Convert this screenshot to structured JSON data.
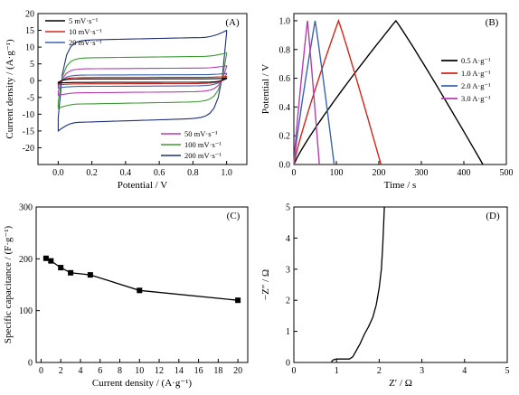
{
  "chart_data": [
    {
      "id": "A",
      "type": "line",
      "panel_label": "(A)",
      "xlabel": "Potential / V",
      "ylabel": "Current density / (A·g⁻¹)",
      "xlim": [
        -0.12,
        1.12
      ],
      "ylim": [
        -25,
        20
      ],
      "xticks": [
        "0.0",
        "0.2",
        "0.4",
        "0.6",
        "0.8",
        "1.0"
      ],
      "yticks": [
        "20",
        "15",
        "10",
        "5",
        "0",
        "-5",
        "-10",
        "-15",
        "-20"
      ],
      "xticks_v": [
        0,
        0.2,
        0.4,
        0.6,
        0.8,
        1.0
      ],
      "yticks_v": [
        20,
        15,
        10,
        5,
        0,
        -5,
        -10,
        -15,
        -20
      ],
      "legend_top": [
        "5 mV·s⁻¹",
        "10 mV·s⁻¹",
        "20 mV·s⁻¹"
      ],
      "legend_bottom": [
        "50 mV·s⁻¹",
        "100 mV·s⁻¹",
        "200 mV·s⁻¹"
      ],
      "series": [
        {
          "name": "5 mV·s⁻¹",
          "color": "#000000",
          "amp": 0.55,
          "tail": 0.6
        },
        {
          "name": "10 mV·s⁻¹",
          "color": "#d4251a",
          "amp": 1.0,
          "tail": 1.0
        },
        {
          "name": "20 mV·s⁻¹",
          "color": "#3b63b0",
          "amp": 1.8,
          "tail": 1.5
        },
        {
          "name": "50 mV·s⁻¹",
          "color": "#b43fb0",
          "amp": 3.8,
          "tail": 2.5
        },
        {
          "name": "100 mV·s⁻¹",
          "color": "#3f9a35",
          "amp": 7.3,
          "tail": 4.0
        },
        {
          "name": "200 mV·s⁻¹",
          "color": "#1f2f7a",
          "amp": 13.0,
          "tail": 8.0
        }
      ]
    },
    {
      "id": "B",
      "type": "line",
      "panel_label": "(B)",
      "xlabel": "Time / s",
      "ylabel": "Potential / V",
      "xlim": [
        0,
        500
      ],
      "ylim": [
        0,
        1.05
      ],
      "xticks": [
        "0",
        "100",
        "200",
        "300",
        "400",
        "500"
      ],
      "yticks": [
        "0.0",
        "0.2",
        "0.4",
        "0.6",
        "0.8",
        "1.0"
      ],
      "xticks_v": [
        0,
        100,
        200,
        300,
        400,
        500
      ],
      "yticks_v": [
        0,
        0.2,
        0.4,
        0.6,
        0.8,
        1.0
      ],
      "legend": [
        "0.5 A·g⁻¹",
        "1.0 A·g⁻¹",
        "2.0 A·g⁻¹",
        "3.0 A·g⁻¹"
      ],
      "series": [
        {
          "name": "0.5 A·g⁻¹",
          "color": "#000000",
          "peak": 240,
          "end": 445
        },
        {
          "name": "1.0 A·g⁻¹",
          "color": "#d4251a",
          "peak": 105,
          "end": 205
        },
        {
          "name": "2.0 A·g⁻¹",
          "color": "#3b63b0",
          "peak": 50,
          "end": 95
        },
        {
          "name": "3.0 A·g⁻¹",
          "color": "#b43fb0",
          "peak": 32,
          "end": 60
        }
      ]
    },
    {
      "id": "C",
      "type": "line",
      "panel_label": "(C)",
      "xlabel": "Current density / (A·g⁻¹)",
      "ylabel": "Specific capacitance / (F·g⁻¹)",
      "xlim": [
        -0.5,
        21
      ],
      "ylim": [
        0,
        300
      ],
      "xticks": [
        "0",
        "2",
        "4",
        "6",
        "8",
        "10",
        "12",
        "14",
        "16",
        "18",
        "20"
      ],
      "yticks": [
        "0",
        "100",
        "200",
        "300"
      ],
      "xticks_v": [
        0,
        2,
        4,
        6,
        8,
        10,
        12,
        14,
        16,
        18,
        20
      ],
      "yticks_v": [
        0,
        100,
        200,
        300
      ],
      "x": [
        0.5,
        1,
        2,
        3,
        5,
        10,
        20
      ],
      "y": [
        201,
        196,
        183,
        173,
        169,
        139,
        120
      ]
    },
    {
      "id": "D",
      "type": "line",
      "panel_label": "(D)",
      "xlabel": "Z′ / Ω",
      "ylabel": "−Z″ / Ω",
      "xlim": [
        0,
        5
      ],
      "ylim": [
        0,
        5
      ],
      "xticks": [
        "0",
        "1",
        "2",
        "3",
        "4",
        "5"
      ],
      "yticks": [
        "0",
        "1",
        "2",
        "3",
        "4",
        "5"
      ],
      "xticks_v": [
        0,
        1,
        2,
        3,
        4,
        5
      ],
      "yticks_v": [
        0,
        1,
        2,
        3,
        4,
        5
      ],
      "x": [
        0.88,
        0.92,
        0.96,
        1.0,
        1.05,
        1.15,
        1.3,
        1.38,
        1.45,
        1.55,
        1.65,
        1.75,
        1.85,
        1.93,
        2.0,
        2.05,
        2.08,
        2.1,
        2.12
      ],
      "y": [
        0.02,
        0.08,
        0.1,
        0.11,
        0.11,
        0.11,
        0.11,
        0.18,
        0.35,
        0.6,
        0.9,
        1.15,
        1.45,
        1.85,
        2.4,
        3.0,
        3.7,
        4.3,
        5.0
      ]
    }
  ]
}
